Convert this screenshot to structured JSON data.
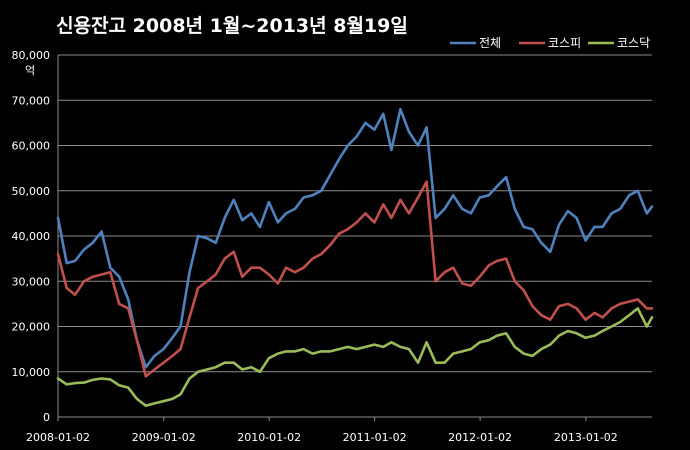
{
  "chart_data": {
    "type": "line",
    "title": "신용잔고 2008년 1월~2013년 8월19일",
    "ylabel": "억",
    "ylim": [
      0,
      80000
    ],
    "yticks": [
      0,
      10000,
      20000,
      30000,
      40000,
      50000,
      60000,
      70000,
      80000
    ],
    "ytick_labels": [
      "0",
      "10,000",
      "20,000",
      "30,000",
      "40,000",
      "50,000",
      "60,000",
      "70,000",
      "80,000"
    ],
    "xlim": [
      "2008-01-02",
      "2013-08-19"
    ],
    "xticks": [
      "2008-01-02",
      "2009-01-02",
      "2010-01-02",
      "2011-01-02",
      "2012-01-02",
      "2013-01-02"
    ],
    "grid": "horizontal",
    "legend_position": "top-right",
    "colors": {
      "background": "#000000",
      "plot_background": "#000000",
      "grid": "#8c8c8c",
      "text": "#ffffff"
    },
    "x": [
      "2008-01-02",
      "2008-02-01",
      "2008-03-01",
      "2008-04-01",
      "2008-05-01",
      "2008-06-01",
      "2008-07-01",
      "2008-08-01",
      "2008-09-01",
      "2008-10-01",
      "2008-11-01",
      "2008-12-01",
      "2009-01-01",
      "2009-02-01",
      "2009-03-01",
      "2009-04-01",
      "2009-05-01",
      "2009-06-01",
      "2009-07-01",
      "2009-08-01",
      "2009-09-01",
      "2009-10-01",
      "2009-11-01",
      "2009-12-01",
      "2010-01-01",
      "2010-02-01",
      "2010-03-01",
      "2010-04-01",
      "2010-05-01",
      "2010-06-01",
      "2010-07-01",
      "2010-08-01",
      "2010-09-01",
      "2010-10-01",
      "2010-11-01",
      "2010-12-01",
      "2011-01-01",
      "2011-02-01",
      "2011-03-01",
      "2011-04-01",
      "2011-05-01",
      "2011-06-01",
      "2011-07-01",
      "2011-08-01",
      "2011-09-01",
      "2011-10-01",
      "2011-11-01",
      "2011-12-01",
      "2012-01-01",
      "2012-02-01",
      "2012-03-01",
      "2012-04-01",
      "2012-05-01",
      "2012-06-01",
      "2012-07-01",
      "2012-08-01",
      "2012-09-01",
      "2012-10-01",
      "2012-11-01",
      "2012-12-01",
      "2013-01-01",
      "2013-02-01",
      "2013-03-01",
      "2013-04-01",
      "2013-05-01",
      "2013-06-01",
      "2013-07-01",
      "2013-08-01",
      "2013-08-19"
    ],
    "series": [
      {
        "name": "전체",
        "color": "#4f81bd",
        "values": [
          44000,
          34000,
          34500,
          37000,
          38500,
          41000,
          33000,
          31000,
          26000,
          17000,
          11000,
          13500,
          15000,
          17500,
          20000,
          32000,
          40000,
          39500,
          38500,
          44000,
          48000,
          43500,
          45000,
          42000,
          47500,
          43000,
          45000,
          46000,
          48500,
          49000,
          50000,
          53500,
          57000,
          60000,
          62000,
          65000,
          63500,
          67000,
          59000,
          68000,
          63000,
          60000,
          64000,
          44000,
          46000,
          49000,
          46000,
          45000,
          48500,
          49000,
          51000,
          53000,
          46000,
          42000,
          41500,
          38500,
          36500,
          42500,
          45500,
          44000,
          39000,
          42000,
          42000,
          45000,
          46000,
          49000,
          50000,
          45000,
          46500
        ]
      },
      {
        "name": "코스피",
        "color": "#c0504d",
        "values": [
          36000,
          28500,
          27000,
          30000,
          31000,
          31500,
          32000,
          25000,
          24000,
          17000,
          9000,
          10500,
          12000,
          13500,
          15000,
          22000,
          28500,
          30000,
          31500,
          35000,
          36500,
          31000,
          33000,
          33000,
          31500,
          29500,
          33000,
          32000,
          33000,
          35000,
          36000,
          38000,
          40500,
          41500,
          43000,
          45000,
          43000,
          47000,
          44000,
          48000,
          45000,
          48500,
          52000,
          30000,
          32000,
          33000,
          29500,
          29000,
          31000,
          33500,
          34500,
          35000,
          30000,
          28000,
          24500,
          22500,
          21500,
          24500,
          25000,
          24000,
          21500,
          23000,
          22000,
          24000,
          25000,
          25500,
          26000,
          24000,
          24000
        ]
      },
      {
        "name": "코스닥",
        "color": "#9bbb59",
        "values": [
          8500,
          7200,
          7500,
          7600,
          8200,
          8500,
          8300,
          7000,
          6500,
          4000,
          2500,
          3000,
          3500,
          4000,
          5000,
          8500,
          10000,
          10500,
          11000,
          12000,
          12000,
          10500,
          11000,
          10000,
          13000,
          14000,
          14500,
          14500,
          15000,
          14000,
          14500,
          14500,
          15000,
          15500,
          15000,
          15500,
          16000,
          15500,
          16500,
          15500,
          15000,
          12000,
          16500,
          12000,
          12000,
          14000,
          14500,
          15000,
          16500,
          17000,
          18000,
          18500,
          15500,
          14000,
          13500,
          15000,
          16000,
          18000,
          19000,
          18500,
          17500,
          18000,
          19000,
          20000,
          21000,
          22500,
          24000,
          20000,
          22000
        ]
      }
    ]
  }
}
